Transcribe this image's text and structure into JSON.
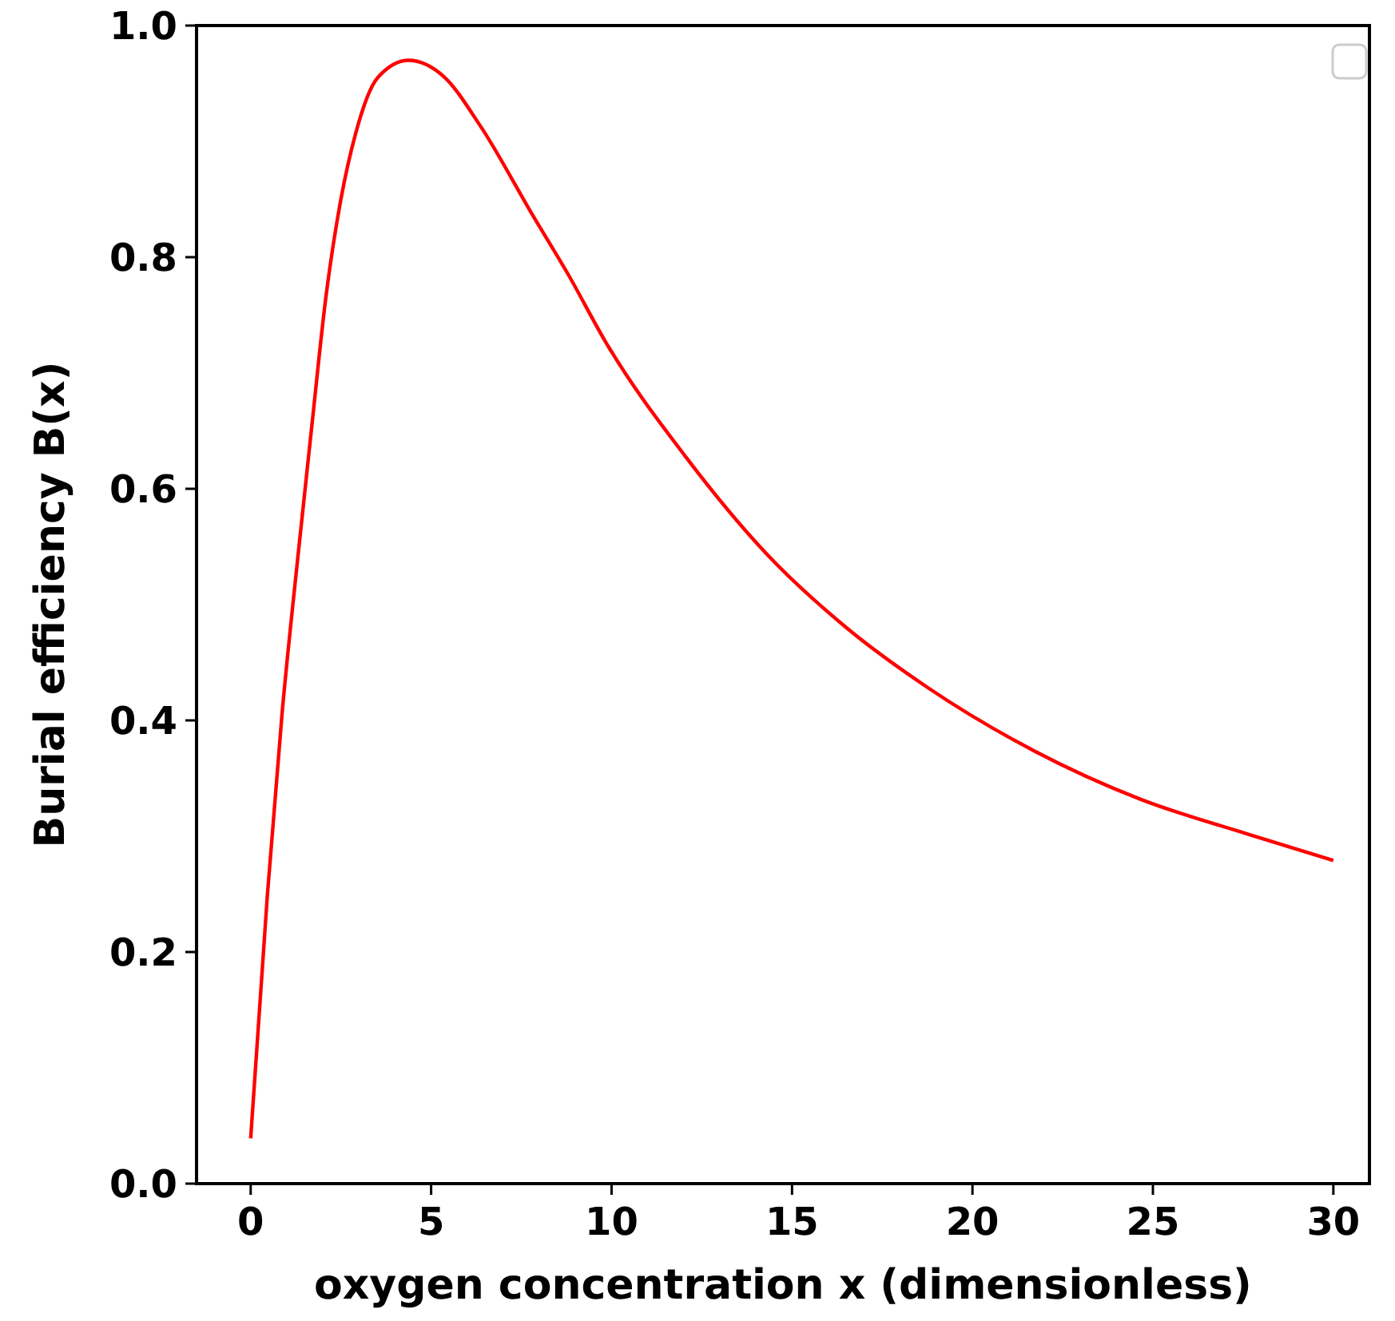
{
  "chart_data": {
    "type": "line",
    "xlabel": "oxygen concentration x (dimensionless)",
    "ylabel": "Burial efficiency B(x)",
    "xlim": [
      -1.5,
      31
    ],
    "ylim": [
      0,
      1
    ],
    "xticks": [
      0,
      5,
      10,
      15,
      20,
      25,
      30
    ],
    "yticks": [
      {
        "value": 0,
        "label": "0.0"
      },
      {
        "value": 0.2,
        "label": "0.2"
      },
      {
        "value": 0.4,
        "label": "0.4"
      },
      {
        "value": 0.6,
        "label": "0.6"
      },
      {
        "value": 0.8,
        "label": "0.8"
      },
      {
        "value": 1,
        "label": "1.0"
      }
    ],
    "grid": false,
    "series": [
      {
        "color": "#ff0000",
        "x": [
          0,
          0.46,
          0.87,
          1.28,
          1.69,
          2.09,
          2.5,
          2.91,
          3.52,
          4.37,
          5.35,
          6.37,
          7.8,
          8.8,
          9.85,
          12.07,
          14.29,
          16.51,
          18.73,
          21.69,
          24.65,
          27.61,
          30
        ],
        "values": [
          0.039,
          0.248,
          0.406,
          0.533,
          0.653,
          0.767,
          0.85,
          0.907,
          0.955,
          0.97,
          0.956,
          0.913,
          0.837,
          0.785,
          0.726,
          0.627,
          0.544,
          0.48,
          0.429,
          0.374,
          0.332,
          0.302,
          0.279
        ]
      }
    ]
  }
}
